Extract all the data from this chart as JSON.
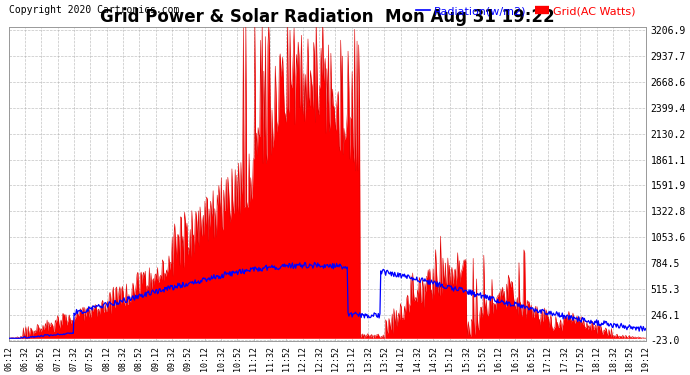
{
  "title": "Grid Power & Solar Radiation  Mon Aug 31 19:22",
  "copyright": "Copyright 2020 Cartronics.com",
  "legend_radiation": "Radiation(w/m2)",
  "legend_grid": "Grid(AC Watts)",
  "yticks": [
    -23.0,
    246.1,
    515.3,
    784.5,
    1053.6,
    1322.8,
    1591.9,
    1861.1,
    2130.2,
    2399.4,
    2668.6,
    2937.7,
    3206.9
  ],
  "ymin": -23.0,
  "ymax": 3206.9,
  "background_color": "#ffffff",
  "grid_color": "#aaaaaa",
  "radiation_color": "#0000ff",
  "solar_fill_color": "#ff0000",
  "solar_line_color": "#dd0000",
  "title_color": "#000000",
  "copyright_color": "#000000",
  "title_fontsize": 12,
  "copyright_fontsize": 7,
  "legend_fontsize": 8,
  "tick_fontsize": 7,
  "xtick_labels": [
    "06:12",
    "06:32",
    "06:52",
    "07:12",
    "07:32",
    "07:52",
    "08:12",
    "08:32",
    "08:52",
    "09:12",
    "09:32",
    "09:52",
    "10:12",
    "10:32",
    "10:52",
    "11:12",
    "11:32",
    "11:52",
    "12:12",
    "12:32",
    "12:52",
    "13:12",
    "13:32",
    "13:52",
    "14:12",
    "14:32",
    "14:52",
    "15:12",
    "15:32",
    "15:52",
    "16:12",
    "16:32",
    "16:52",
    "17:12",
    "17:32",
    "17:52",
    "18:12",
    "18:32",
    "18:52",
    "19:12"
  ]
}
